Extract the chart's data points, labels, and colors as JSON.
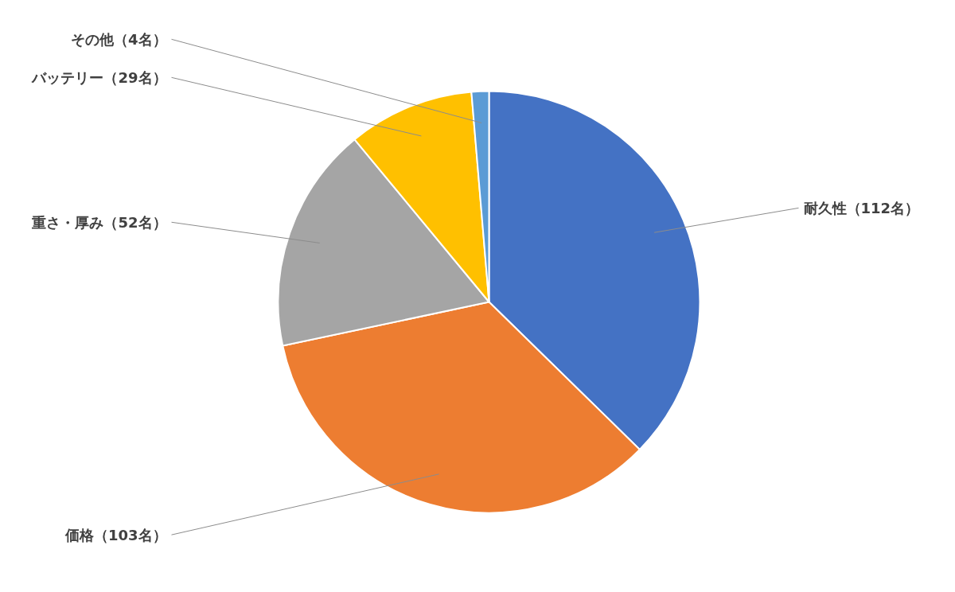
{
  "chart_data": {
    "type": "pie",
    "categories": [
      "耐久性（112名）",
      "価格（103名）",
      "重さ・厚み（52名）",
      "バッテリー（29名）",
      "その他（4名）"
    ],
    "values": [
      112,
      103,
      52,
      29,
      4
    ],
    "colors": [
      "#4472c4",
      "#ed7d31",
      "#a5a5a5",
      "#ffc000",
      "#5b9bd5"
    ]
  }
}
